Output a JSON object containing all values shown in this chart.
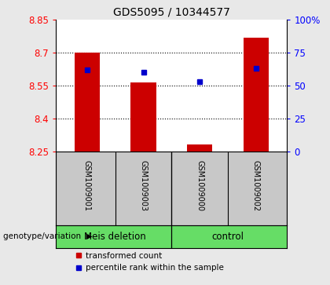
{
  "title": "GDS5095 / 10344577",
  "samples": [
    "GSM1009001",
    "GSM1009003",
    "GSM1009000",
    "GSM1009002"
  ],
  "group_labels": [
    "Meis deletion",
    "control"
  ],
  "transformed_counts": [
    8.7,
    8.565,
    8.28,
    8.77
  ],
  "percentile_ranks": [
    62,
    60,
    53,
    63
  ],
  "y_min": 8.25,
  "y_max": 8.85,
  "y_ticks": [
    8.25,
    8.4,
    8.55,
    8.7,
    8.85
  ],
  "y_tick_labels": [
    "8.25",
    "8.4",
    "8.55",
    "8.7",
    "8.85"
  ],
  "right_y_ticks": [
    0,
    25,
    50,
    75,
    100
  ],
  "right_y_tick_labels": [
    "0",
    "25",
    "50",
    "75",
    "100%"
  ],
  "bar_color": "#cc0000",
  "dot_color": "#0000cc",
  "bar_width": 0.45,
  "legend_red_label": "transformed count",
  "legend_blue_label": "percentile rank within the sample",
  "plot_bg": "#ffffff",
  "label_bg": "#c8c8c8",
  "group_bg": "#66dd66"
}
